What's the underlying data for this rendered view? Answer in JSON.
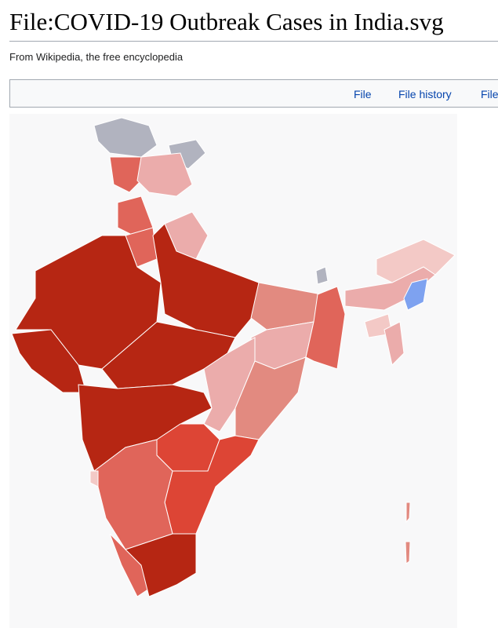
{
  "header": {
    "title": "File:COVID-19 Outbreak Cases in India.svg",
    "subtitle": "From Wikipedia, the free encyclopedia"
  },
  "tabs": [
    "File",
    "File history",
    "File"
  ]
}
